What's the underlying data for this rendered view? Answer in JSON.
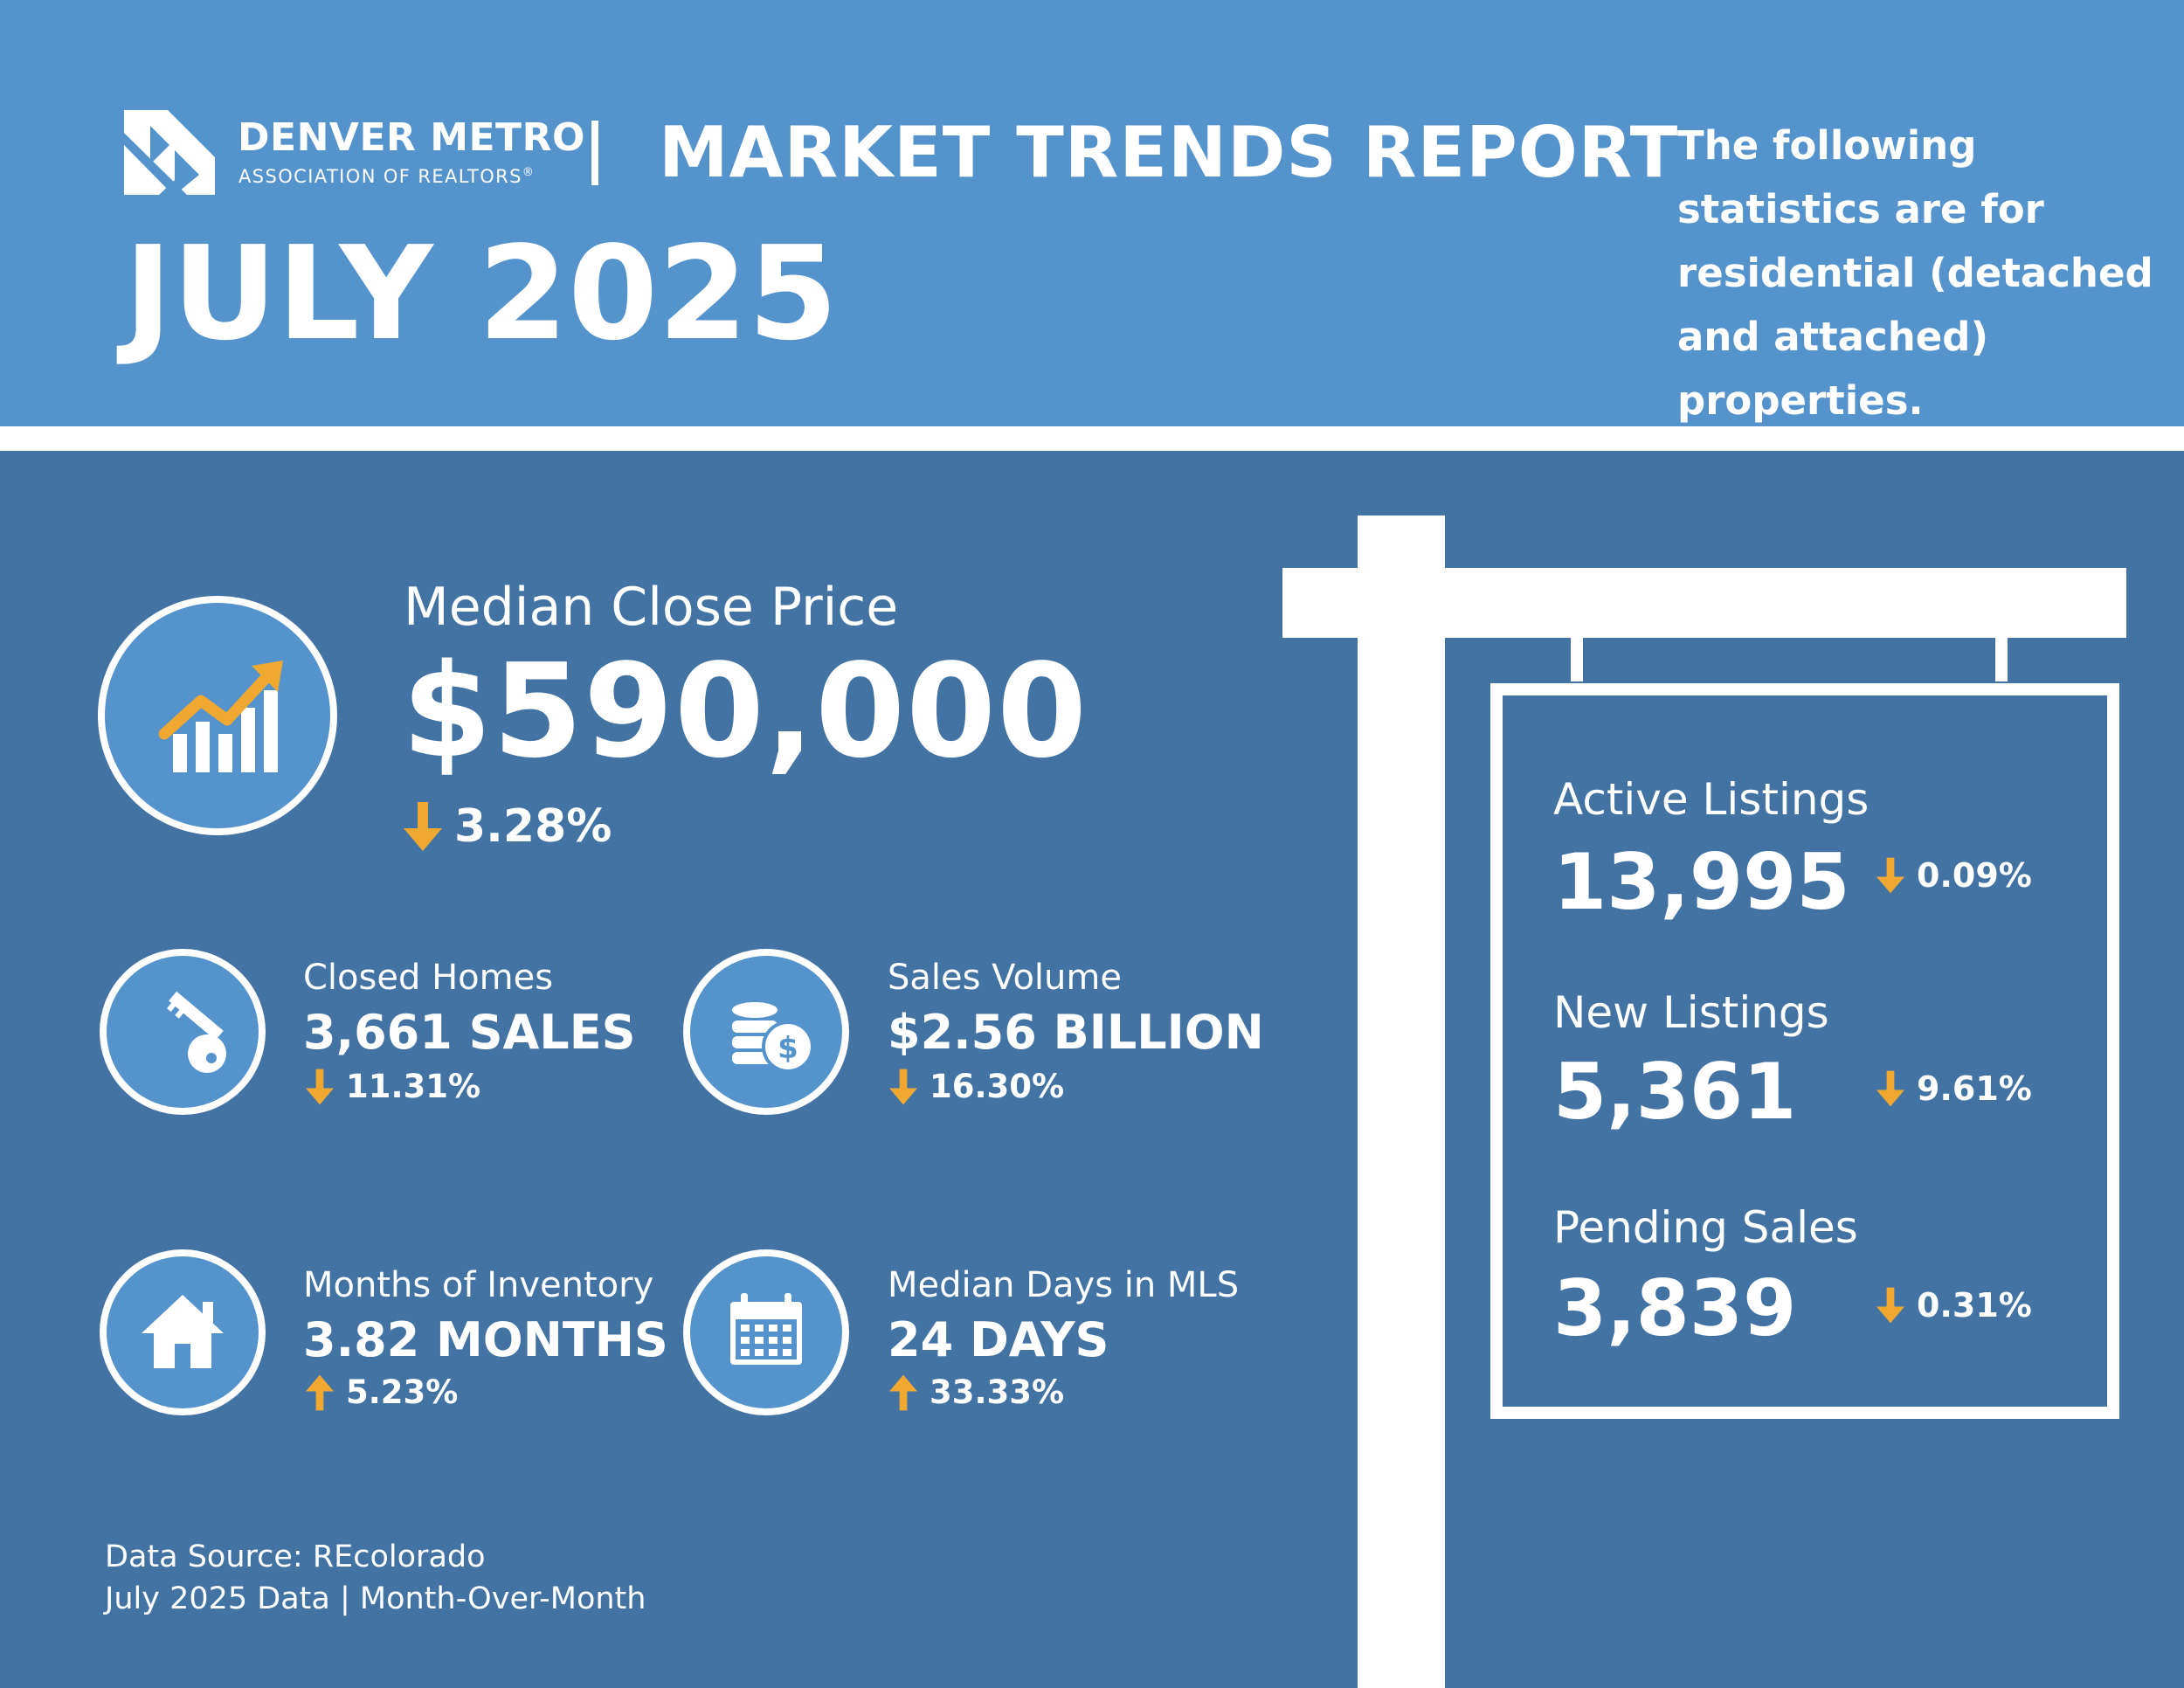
{
  "brand": {
    "name": "DENVER METRO",
    "subtitle": "ASSOCIATION OF REALTORS",
    "registered_mark": "®"
  },
  "header": {
    "title": "MARKET TRENDS REPORT",
    "month": "JULY 2025",
    "disclaimer": "The following statistics are for residential (detached and attached) properties."
  },
  "median_close_price": {
    "label": "Median Close Price",
    "value": "$590,000",
    "change": "3.28%",
    "direction": "down",
    "icon": "chart-up-icon"
  },
  "stats": {
    "closed_homes": {
      "label": "Closed Homes",
      "value": "3,661 SALES",
      "change": "11.31%",
      "direction": "down",
      "icon": "key-icon"
    },
    "sales_volume": {
      "label": "Sales Volume",
      "value": "$2.56 BILLION",
      "change": "16.30%",
      "direction": "down",
      "icon": "coins-icon"
    },
    "months_inventory": {
      "label": "Months of Inventory",
      "value": "3.82 MONTHS",
      "change": "5.23%",
      "direction": "up",
      "icon": "house-icon"
    },
    "median_days": {
      "label": "Median Days in MLS",
      "value": "24 DAYS",
      "change": "33.33%",
      "direction": "up",
      "icon": "calendar-icon"
    }
  },
  "sign": {
    "active_listings": {
      "label": "Active Listings",
      "value": "13,995",
      "change": "0.09%",
      "direction": "down"
    },
    "new_listings": {
      "label": "New Listings",
      "value": "5,361",
      "change": "9.61%",
      "direction": "down"
    },
    "pending_sales": {
      "label": "Pending Sales",
      "value": "3,839",
      "change": "0.31%",
      "direction": "down"
    }
  },
  "footer": {
    "source": "Data Source: REcolorado",
    "period": "July 2025 Data | Month-Over-Month"
  },
  "colors": {
    "header_blue": "#5493cc",
    "main_blue": "#4273a3",
    "accent_orange": "#f0a830"
  }
}
